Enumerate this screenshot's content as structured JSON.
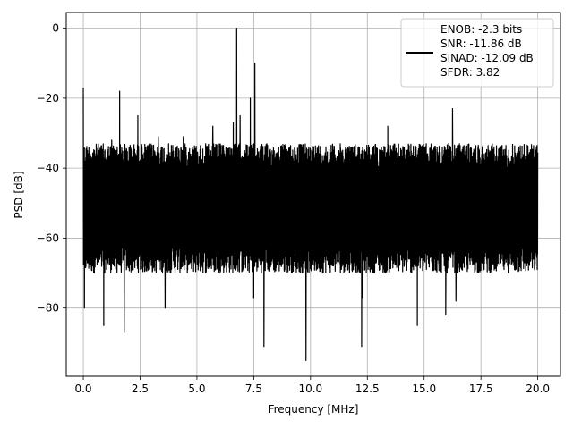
{
  "chart_data": {
    "type": "line",
    "xlabel": "Frequency [MHz]",
    "ylabel": "PSD [dB]",
    "xlim": [
      -0.75,
      21.0
    ],
    "ylim": [
      -99.5,
      4.5
    ],
    "xticks": [
      0.0,
      2.5,
      5.0,
      7.5,
      10.0,
      12.5,
      15.0,
      17.5,
      20.0
    ],
    "xtick_labels": [
      "0.0",
      "2.5",
      "5.0",
      "7.5",
      "10.0",
      "12.5",
      "15.0",
      "17.5",
      "20.0"
    ],
    "yticks": [
      0,
      -20,
      -40,
      -60,
      -80
    ],
    "ytick_labels": [
      "0",
      "−20",
      "−40",
      "−60",
      "−80"
    ],
    "grid": true,
    "legend_position": "top-right",
    "series": [
      {
        "name": "ENOB: -2.3 bits\nSNR: -11.86 dB\nSINAD: -12.09 dB\nSFDR: 3.82",
        "color": "#000000",
        "noise_floor_db": [
          -70,
          -33
        ],
        "spikes": [
          {
            "x": 0.0,
            "y": -17
          },
          {
            "x": 0.05,
            "y": -80
          },
          {
            "x": 0.9,
            "y": -85
          },
          {
            "x": 1.25,
            "y": -32
          },
          {
            "x": 1.6,
            "y": -18
          },
          {
            "x": 1.8,
            "y": -87
          },
          {
            "x": 2.4,
            "y": -25
          },
          {
            "x": 3.3,
            "y": -31
          },
          {
            "x": 3.6,
            "y": -80
          },
          {
            "x": 4.4,
            "y": -31
          },
          {
            "x": 5.7,
            "y": -28
          },
          {
            "x": 6.75,
            "y": 0
          },
          {
            "x": 6.6,
            "y": -27
          },
          {
            "x": 6.9,
            "y": -25
          },
          {
            "x": 7.1,
            "y": -35
          },
          {
            "x": 7.35,
            "y": -20
          },
          {
            "x": 7.55,
            "y": -10
          },
          {
            "x": 7.5,
            "y": -77
          },
          {
            "x": 7.95,
            "y": -91
          },
          {
            "x": 9.8,
            "y": -95
          },
          {
            "x": 12.25,
            "y": -91
          },
          {
            "x": 12.3,
            "y": -77
          },
          {
            "x": 13.4,
            "y": -28
          },
          {
            "x": 14.7,
            "y": -85
          },
          {
            "x": 15.95,
            "y": -82
          },
          {
            "x": 16.25,
            "y": -23
          },
          {
            "x": 16.4,
            "y": -78
          }
        ]
      }
    ]
  }
}
